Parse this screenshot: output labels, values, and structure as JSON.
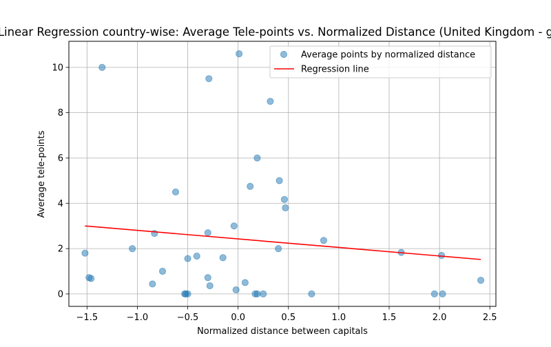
{
  "chart_data": {
    "type": "scatter",
    "title": "Linear Regression country-wise: Average Tele-points vs. Normalized Distance (United Kingdom - g",
    "xlabel": "Normalized distance between capitals",
    "ylabel": "Average tele-points",
    "xlim": [
      -1.68,
      2.56
    ],
    "ylim": [
      -0.55,
      11.15
    ],
    "xticks": [
      -1.5,
      -1.0,
      -0.5,
      0.0,
      0.5,
      1.0,
      1.5,
      2.0,
      2.5
    ],
    "xtick_labels": [
      "−1.5",
      "−1.0",
      "−0.5",
      "0.0",
      "0.5",
      "1.0",
      "1.5",
      "2.0",
      "2.5"
    ],
    "yticks": [
      0,
      2,
      4,
      6,
      8,
      10
    ],
    "ytick_labels": [
      "0",
      "2",
      "4",
      "6",
      "8",
      "10"
    ],
    "grid": true,
    "legend_position": "top-right",
    "series": [
      {
        "name": "Average points by normalized distance",
        "kind": "scatter",
        "color": "#1f77b4",
        "points": [
          {
            "x": -1.52,
            "y": 1.8
          },
          {
            "x": -1.48,
            "y": 0.72
          },
          {
            "x": -1.46,
            "y": 0.68
          },
          {
            "x": -1.35,
            "y": 10.0
          },
          {
            "x": -1.05,
            "y": 2.0
          },
          {
            "x": -0.83,
            "y": 2.67
          },
          {
            "x": -0.85,
            "y": 0.44
          },
          {
            "x": -0.75,
            "y": 1.0
          },
          {
            "x": -0.62,
            "y": 4.5
          },
          {
            "x": -0.53,
            "y": 0.0
          },
          {
            "x": -0.52,
            "y": 0.0
          },
          {
            "x": -0.5,
            "y": 0.0
          },
          {
            "x": -0.5,
            "y": 1.56
          },
          {
            "x": -0.41,
            "y": 1.67
          },
          {
            "x": -0.3,
            "y": 2.7
          },
          {
            "x": -0.3,
            "y": 0.72
          },
          {
            "x": -0.29,
            "y": 9.5
          },
          {
            "x": -0.28,
            "y": 0.36
          },
          {
            "x": -0.15,
            "y": 1.6
          },
          {
            "x": -0.04,
            "y": 3.0
          },
          {
            "x": -0.02,
            "y": 0.18
          },
          {
            "x": 0.01,
            "y": 10.6
          },
          {
            "x": 0.07,
            "y": 0.5
          },
          {
            "x": 0.12,
            "y": 4.75
          },
          {
            "x": 0.17,
            "y": 0.0
          },
          {
            "x": 0.19,
            "y": 0.0
          },
          {
            "x": 0.19,
            "y": 6.0
          },
          {
            "x": 0.25,
            "y": 0.0
          },
          {
            "x": 0.32,
            "y": 8.5
          },
          {
            "x": 0.4,
            "y": 2.0
          },
          {
            "x": 0.41,
            "y": 5.0
          },
          {
            "x": 0.46,
            "y": 4.17
          },
          {
            "x": 0.47,
            "y": 3.8
          },
          {
            "x": 0.73,
            "y": 0.0
          },
          {
            "x": 0.85,
            "y": 2.36
          },
          {
            "x": 1.62,
            "y": 1.83
          },
          {
            "x": 1.95,
            "y": 0.0
          },
          {
            "x": 2.02,
            "y": 1.7
          },
          {
            "x": 2.03,
            "y": 0.0
          },
          {
            "x": 2.41,
            "y": 0.6
          }
        ]
      },
      {
        "name": "Regression line",
        "kind": "line",
        "color": "#ff0000",
        "points": [
          {
            "x": -1.52,
            "y": 3.0
          },
          {
            "x": 2.41,
            "y": 1.52
          }
        ]
      }
    ]
  }
}
